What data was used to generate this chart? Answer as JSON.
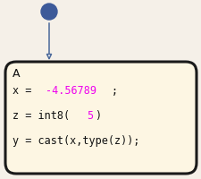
{
  "bg_color": "#f5f0e8",
  "box_bg": "#fdf6e3",
  "box_edge": "#1a1a1a",
  "state_label": "A",
  "line1_black1": "x = ",
  "line1_magenta": "-4.56789",
  "line1_black2": ";",
  "line2_black1": "z = int8(",
  "line2_magenta": "5",
  "line2_black2": ")",
  "line3": "y = cast(x,type(z));",
  "circle_color": "#3d5a99",
  "arrow_color": "#4a6899",
  "magenta": "#ee00ee",
  "black": "#111111",
  "font_size": 8.5
}
